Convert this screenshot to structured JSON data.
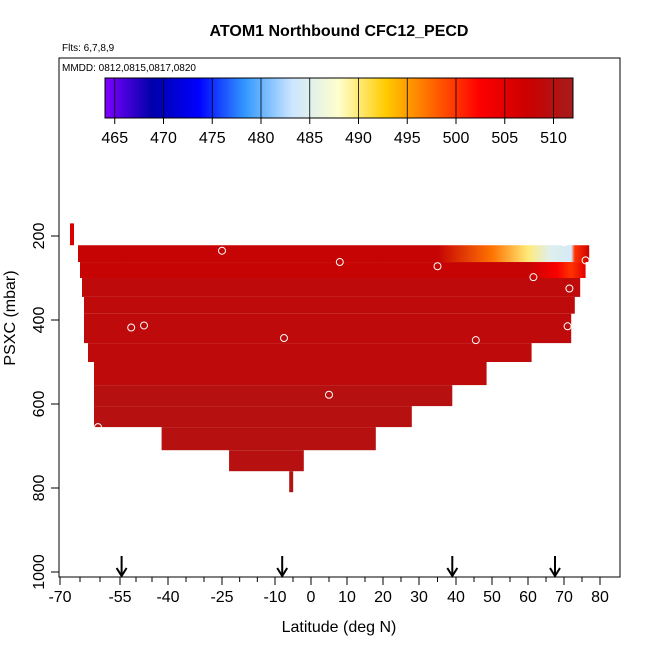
{
  "chart_data": {
    "type": "heatmap",
    "title": "ATOM1 Northbound CFC12_PECD",
    "flights_note": "Flts: 6,7,8,9",
    "dates_note": "MMDD: 0812,0815,0817,0820",
    "xlabel": "Latitude (deg N)",
    "ylabel": "PSXC (mbar)",
    "x_ticks": [
      -70,
      -55,
      -40,
      -25,
      -10,
      0,
      10,
      20,
      30,
      40,
      50,
      60,
      70,
      80
    ],
    "y_ticks": [
      200,
      400,
      600,
      800,
      1000
    ],
    "ylim": [
      1000,
      0
    ],
    "y_reversed": true,
    "colorbar": {
      "ticks": [
        465,
        470,
        475,
        480,
        485,
        490,
        495,
        500,
        505,
        510
      ],
      "range": [
        464,
        512
      ],
      "colors": [
        "#7f00ff",
        "#0000aa",
        "#0000ff",
        "#3399ff",
        "#cce6ff",
        "#ffffcc",
        "#ffcc00",
        "#ff6600",
        "#ff0000",
        "#cc0000",
        "#a61b1b"
      ]
    },
    "arrow_latitudes": [
      -54.5,
      -8,
      39,
      67.5
    ],
    "layers": [
      {
        "p_top": 222,
        "p_bottom": 262,
        "lat_start": -65.5,
        "lat_end": 77,
        "base_value": 508,
        "gradient": [
          [
            35,
            508
          ],
          [
            50,
            497
          ],
          [
            60,
            490
          ],
          [
            66,
            485
          ],
          [
            72,
            484
          ],
          [
            73,
            500
          ],
          [
            77,
            507
          ]
        ]
      },
      {
        "p_top": 262,
        "p_bottom": 300,
        "lat_start": -65,
        "lat_end": 76,
        "base_value": 508,
        "gradient": [
          [
            60,
            508
          ],
          [
            68,
            503
          ],
          [
            72,
            500
          ],
          [
            76,
            505
          ]
        ]
      },
      {
        "p_top": 300,
        "p_bottom": 345,
        "lat_start": -64.5,
        "lat_end": 74.5,
        "base_value": 509
      },
      {
        "p_top": 345,
        "p_bottom": 385,
        "lat_start": -64,
        "lat_end": 73,
        "base_value": 509
      },
      {
        "p_top": 385,
        "p_bottom": 455,
        "lat_start": -64,
        "lat_end": 72,
        "base_value": 509
      },
      {
        "p_top": 455,
        "p_bottom": 500,
        "lat_start": -63,
        "lat_end": 61,
        "base_value": 509
      },
      {
        "p_top": 500,
        "p_bottom": 555,
        "lat_start": -61.5,
        "lat_end": 48.5,
        "base_value": 509
      },
      {
        "p_top": 555,
        "p_bottom": 605,
        "lat_start": -61.5,
        "lat_end": 39,
        "base_value": 510
      },
      {
        "p_top": 605,
        "p_bottom": 655,
        "lat_start": -61.5,
        "lat_end": 28,
        "base_value": 510
      },
      {
        "p_top": 655,
        "p_bottom": 710,
        "lat_start": -42,
        "lat_end": 18,
        "base_value": 510
      },
      {
        "p_top": 710,
        "p_bottom": 760,
        "lat_start": -23,
        "lat_end": -2,
        "base_value": 510
      }
    ],
    "isolated_cells": [
      {
        "lat": -67,
        "p_top": 170,
        "p_bottom": 222,
        "value": 506
      },
      {
        "lat": -5.5,
        "p_top": 760,
        "p_bottom": 810,
        "value": 511
      }
    ],
    "markers": [
      {
        "lat": -25,
        "p": 235,
        "value": 508
      },
      {
        "lat": 8,
        "p": 262,
        "value": 508
      },
      {
        "lat": 35,
        "p": 272,
        "value": 505
      },
      {
        "lat": 70,
        "p": 215,
        "value": 486
      },
      {
        "lat": 61.5,
        "p": 298,
        "value": 502
      },
      {
        "lat": 76,
        "p": 258,
        "value": 506
      },
      {
        "lat": 71.5,
        "p": 325,
        "value": 508
      },
      {
        "lat": 71,
        "p": 415,
        "value": 509
      },
      {
        "lat": -51.5,
        "p": 418,
        "value": 509
      },
      {
        "lat": -47.5,
        "p": 413,
        "value": 509
      },
      {
        "lat": -7.5,
        "p": 443,
        "value": 509
      },
      {
        "lat": 45.5,
        "p": 448,
        "value": 509
      },
      {
        "lat": 5,
        "p": 578,
        "value": 510
      },
      {
        "lat": -60.5,
        "p": 655,
        "value": 510
      }
    ]
  }
}
